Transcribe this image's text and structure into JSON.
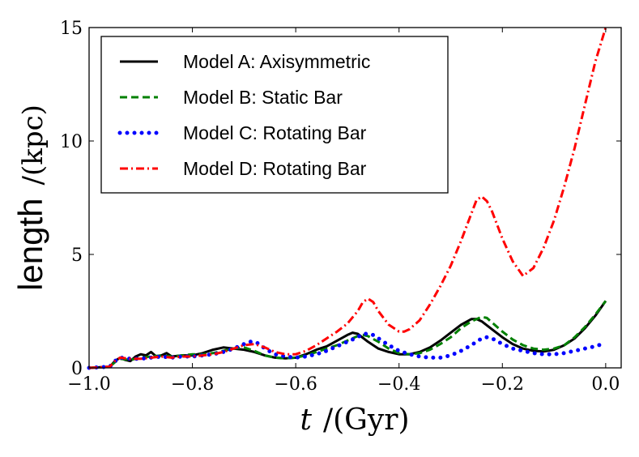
{
  "chart_data": {
    "type": "line",
    "title": "",
    "xlabel": {
      "var": "t",
      "unit": "/(Gyr)"
    },
    "ylabel": {
      "word": "length",
      "unit": "/(kpc)"
    },
    "xlim": [
      -1.0,
      0.03
    ],
    "ylim": [
      0,
      15
    ],
    "xticks": [
      -1.0,
      -0.8,
      -0.6,
      -0.4,
      -0.2,
      0.0
    ],
    "xtick_labels": [
      "−1.0",
      "−0.8",
      "−0.6",
      "−0.4",
      "−0.2",
      "0.0"
    ],
    "yticks": [
      0,
      5,
      10,
      15
    ],
    "ytick_labels": [
      "0",
      "5",
      "10",
      "15"
    ],
    "grid": false,
    "legend_position": "top-left",
    "series": [
      {
        "name": "Model A: Axisymmetric",
        "color": "#000000",
        "style": "solid",
        "x": [
          -1.0,
          -0.96,
          -0.95,
          -0.94,
          -0.93,
          -0.92,
          -0.91,
          -0.9,
          -0.89,
          -0.88,
          -0.87,
          -0.86,
          -0.85,
          -0.84,
          -0.82,
          -0.8,
          -0.78,
          -0.76,
          -0.74,
          -0.72,
          -0.7,
          -0.68,
          -0.66,
          -0.64,
          -0.62,
          -0.6,
          -0.58,
          -0.56,
          -0.54,
          -0.52,
          -0.5,
          -0.49,
          -0.48,
          -0.46,
          -0.44,
          -0.42,
          -0.4,
          -0.38,
          -0.36,
          -0.34,
          -0.32,
          -0.3,
          -0.28,
          -0.26,
          -0.25,
          -0.24,
          -0.22,
          -0.2,
          -0.18,
          -0.16,
          -0.14,
          -0.12,
          -0.1,
          -0.08,
          -0.06,
          -0.04,
          -0.02,
          0.0
        ],
        "y": [
          0.0,
          0.05,
          0.3,
          0.45,
          0.35,
          0.3,
          0.5,
          0.6,
          0.55,
          0.7,
          0.5,
          0.55,
          0.65,
          0.5,
          0.55,
          0.55,
          0.65,
          0.8,
          0.9,
          0.85,
          0.8,
          0.7,
          0.55,
          0.45,
          0.42,
          0.45,
          0.6,
          0.8,
          0.95,
          1.2,
          1.45,
          1.55,
          1.5,
          1.15,
          0.85,
          0.7,
          0.6,
          0.6,
          0.7,
          0.9,
          1.2,
          1.55,
          1.9,
          2.15,
          2.15,
          2.05,
          1.7,
          1.35,
          1.05,
          0.85,
          0.75,
          0.72,
          0.8,
          1.0,
          1.3,
          1.75,
          2.3,
          2.95
        ]
      },
      {
        "name": "Model B: Static Bar",
        "color": "#008000",
        "style": "dashed",
        "x": [
          -1.0,
          -0.96,
          -0.95,
          -0.94,
          -0.92,
          -0.9,
          -0.88,
          -0.86,
          -0.84,
          -0.82,
          -0.8,
          -0.78,
          -0.76,
          -0.74,
          -0.72,
          -0.7,
          -0.68,
          -0.66,
          -0.64,
          -0.62,
          -0.6,
          -0.58,
          -0.56,
          -0.54,
          -0.52,
          -0.5,
          -0.48,
          -0.47,
          -0.46,
          -0.44,
          -0.42,
          -0.4,
          -0.38,
          -0.36,
          -0.34,
          -0.32,
          -0.3,
          -0.28,
          -0.26,
          -0.24,
          -0.23,
          -0.22,
          -0.2,
          -0.18,
          -0.16,
          -0.14,
          -0.12,
          -0.1,
          -0.08,
          -0.06,
          -0.04,
          -0.02,
          0.0
        ],
        "y": [
          0.0,
          0.05,
          0.25,
          0.4,
          0.35,
          0.45,
          0.5,
          0.55,
          0.5,
          0.55,
          0.6,
          0.6,
          0.65,
          0.75,
          0.85,
          0.9,
          0.75,
          0.55,
          0.45,
          0.42,
          0.45,
          0.55,
          0.7,
          0.85,
          1.0,
          1.2,
          1.4,
          1.45,
          1.4,
          1.15,
          0.85,
          0.65,
          0.6,
          0.65,
          0.8,
          1.05,
          1.35,
          1.75,
          2.05,
          2.25,
          2.2,
          2.0,
          1.6,
          1.25,
          1.0,
          0.85,
          0.8,
          0.85,
          1.0,
          1.35,
          1.8,
          2.35,
          2.95
        ]
      },
      {
        "name": "Model C: Rotating Bar",
        "color": "#0000ff",
        "style": "dotted",
        "x": [
          -1.0,
          -0.96,
          -0.95,
          -0.94,
          -0.92,
          -0.9,
          -0.88,
          -0.86,
          -0.84,
          -0.82,
          -0.8,
          -0.78,
          -0.76,
          -0.74,
          -0.72,
          -0.7,
          -0.69,
          -0.68,
          -0.67,
          -0.66,
          -0.64,
          -0.62,
          -0.6,
          -0.58,
          -0.56,
          -0.54,
          -0.52,
          -0.5,
          -0.48,
          -0.47,
          -0.46,
          -0.45,
          -0.44,
          -0.42,
          -0.4,
          -0.38,
          -0.36,
          -0.34,
          -0.32,
          -0.3,
          -0.28,
          -0.26,
          -0.24,
          -0.23,
          -0.22,
          -0.2,
          -0.18,
          -0.16,
          -0.14,
          -0.12,
          -0.1,
          -0.08,
          -0.06,
          -0.04,
          -0.02,
          0.0
        ],
        "y": [
          0.0,
          0.05,
          0.3,
          0.45,
          0.4,
          0.4,
          0.45,
          0.5,
          0.45,
          0.5,
          0.5,
          0.55,
          0.6,
          0.7,
          0.85,
          1.05,
          1.15,
          1.15,
          1.05,
          0.85,
          0.6,
          0.5,
          0.45,
          0.5,
          0.6,
          0.75,
          0.95,
          1.15,
          1.35,
          1.5,
          1.5,
          1.45,
          1.3,
          1.0,
          0.75,
          0.6,
          0.5,
          0.45,
          0.45,
          0.55,
          0.75,
          1.0,
          1.3,
          1.35,
          1.3,
          1.05,
          0.85,
          0.75,
          0.65,
          0.6,
          0.6,
          0.65,
          0.75,
          0.85,
          0.95,
          1.1
        ]
      },
      {
        "name": "Model D: Rotating Bar",
        "color": "#ff0000",
        "style": "dashdot",
        "x": [
          -1.0,
          -0.96,
          -0.95,
          -0.94,
          -0.92,
          -0.9,
          -0.88,
          -0.86,
          -0.84,
          -0.82,
          -0.8,
          -0.78,
          -0.76,
          -0.74,
          -0.72,
          -0.7,
          -0.68,
          -0.66,
          -0.64,
          -0.62,
          -0.6,
          -0.58,
          -0.56,
          -0.54,
          -0.52,
          -0.5,
          -0.48,
          -0.47,
          -0.46,
          -0.45,
          -0.44,
          -0.42,
          -0.4,
          -0.39,
          -0.38,
          -0.36,
          -0.34,
          -0.32,
          -0.3,
          -0.28,
          -0.26,
          -0.25,
          -0.24,
          -0.23,
          -0.22,
          -0.2,
          -0.18,
          -0.16,
          -0.14,
          -0.12,
          -0.1,
          -0.08,
          -0.06,
          -0.04,
          -0.02,
          0.0
        ],
        "y": [
          0.0,
          0.05,
          0.3,
          0.45,
          0.4,
          0.4,
          0.45,
          0.5,
          0.45,
          0.5,
          0.5,
          0.55,
          0.6,
          0.7,
          0.85,
          1.0,
          1.05,
          0.9,
          0.7,
          0.6,
          0.6,
          0.75,
          1.0,
          1.3,
          1.6,
          1.95,
          2.5,
          2.9,
          3.05,
          2.9,
          2.5,
          1.9,
          1.6,
          1.6,
          1.7,
          2.1,
          2.8,
          3.6,
          4.5,
          5.6,
          6.8,
          7.4,
          7.55,
          7.35,
          6.9,
          5.7,
          4.7,
          4.05,
          4.4,
          5.3,
          6.5,
          8.0,
          9.7,
          11.6,
          13.5,
          15.0
        ]
      }
    ]
  }
}
